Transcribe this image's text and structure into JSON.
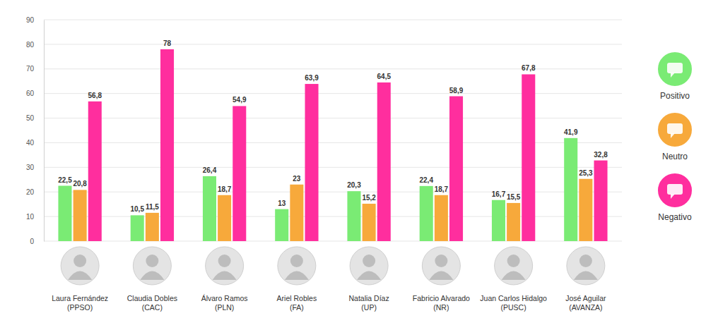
{
  "chart_data": {
    "type": "bar",
    "categories": [
      "Laura Fernández (PPSO)",
      "Claudia Dobles (CAC)",
      "Álvaro Ramos (PLN)",
      "Ariel Robles (FA)",
      "Natalia Díaz (UP)",
      "Fabricio Alvarado (NR)",
      "Juan Carlos Hidalgo (PUSC)",
      "José Aguilar (AVANZA)"
    ],
    "series": [
      {
        "name": "Positivo",
        "color": "#7AEB74",
        "values": [
          22.5,
          10.5,
          26.4,
          13,
          20.3,
          22.4,
          16.7,
          41.9
        ],
        "value_labels": [
          "22,5",
          "10,5",
          "26,4",
          "13",
          "20,3",
          "22,4",
          "16,7",
          "41,9"
        ]
      },
      {
        "name": "Neutro",
        "color": "#F7A93B",
        "values": [
          20.8,
          11.5,
          18.7,
          23,
          15.2,
          18.7,
          15.5,
          25.3
        ],
        "value_labels": [
          "20,8",
          "11,5",
          "18,7",
          "23",
          "15,2",
          "18,7",
          "15,5",
          "25,3"
        ]
      },
      {
        "name": "Negativo",
        "color": "#FF2E9E",
        "values": [
          56.8,
          78,
          54.9,
          63.9,
          64.5,
          58.9,
          67.8,
          32.8
        ],
        "value_labels": [
          "56,8",
          "78",
          "54,9",
          "63,9",
          "64,5",
          "58,9",
          "67,8",
          "32,8"
        ]
      }
    ],
    "ylim": [
      0,
      90
    ],
    "yticks": [
      0,
      10,
      20,
      30,
      40,
      50,
      60,
      70,
      80,
      90
    ],
    "grid": true,
    "data_labels": true,
    "legend": "right"
  }
}
